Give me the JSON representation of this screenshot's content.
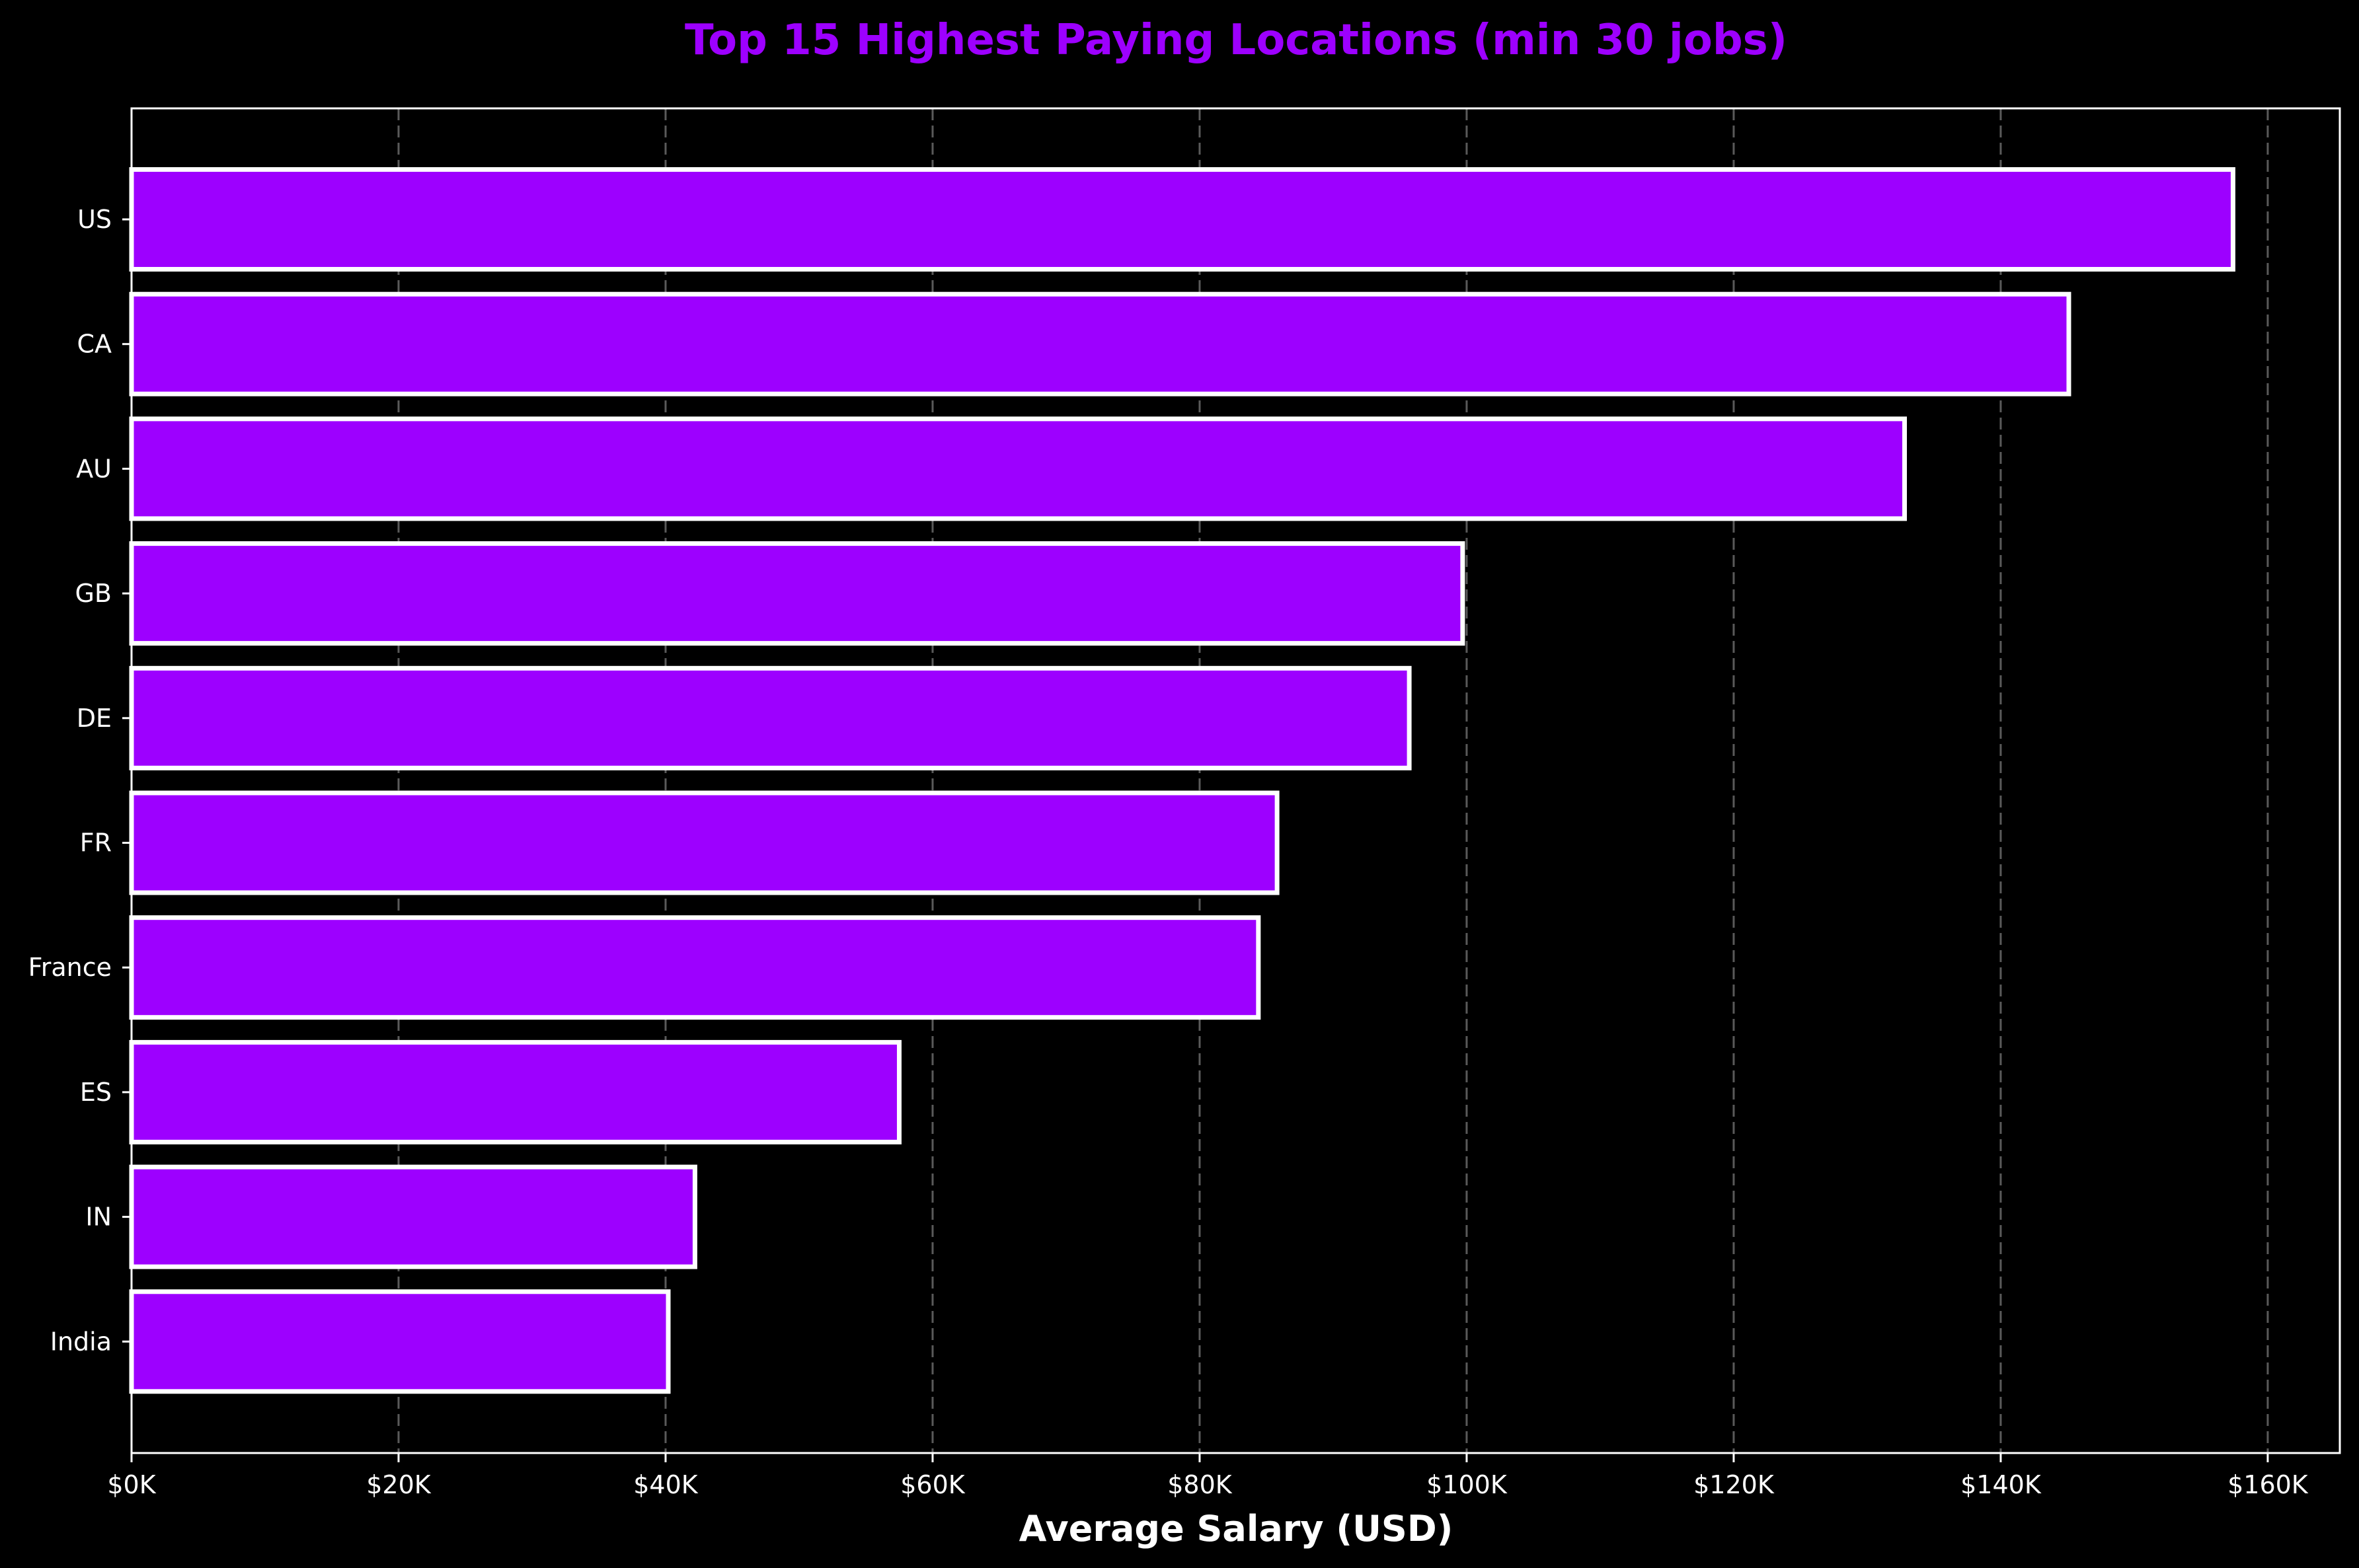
{
  "chart_data": {
    "type": "bar",
    "orientation": "horizontal",
    "title": "Top 15 Highest Paying Locations (min 30 jobs)",
    "xlabel": "Average Salary (USD)",
    "ylabel": "",
    "categories": [
      "US",
      "CA",
      "AU",
      "GB",
      "DE",
      "FR",
      "France",
      "ES",
      "IN",
      "India"
    ],
    "values": [
      157400,
      145100,
      132800,
      99700,
      95700,
      85800,
      84400,
      57500,
      42200,
      40200
    ],
    "xlim": [
      0,
      165400
    ],
    "xticks": [
      0,
      20000,
      40000,
      60000,
      80000,
      100000,
      120000,
      140000,
      160000
    ],
    "xtick_labels": [
      "$0K",
      "$20K",
      "$40K",
      "$60K",
      "$80K",
      "$100K",
      "$120K",
      "$140K",
      "$160K"
    ],
    "grid": {
      "axis": "x",
      "style": "dashed"
    },
    "legend": null,
    "colors": {
      "background": "#000000",
      "bar_fill": "#9D00FF",
      "bar_edge": "#FFFFFF",
      "title": "#9D00FF",
      "text": "#FFFFFF",
      "grid": "#5A5A5A"
    }
  }
}
